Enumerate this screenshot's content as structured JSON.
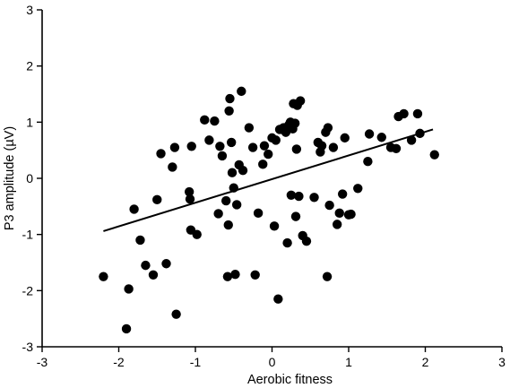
{
  "chart_data": {
    "type": "scatter",
    "title": "",
    "xlabel": "Aerobic fitness",
    "ylabel": "P3 amplitude (µV)",
    "xlim": [
      -3,
      3
    ],
    "ylim": [
      -3,
      3
    ],
    "xticks": [
      "-3",
      "-2",
      "-1",
      "0",
      "1",
      "2",
      "3"
    ],
    "yticks": [
      "3",
      "2",
      "1",
      "0",
      "-1",
      "-2",
      "-3"
    ],
    "grid": false,
    "legend": "none",
    "regression_line": {
      "x": [
        -2.2,
        2.1
      ],
      "y": [
        -0.94,
        0.87
      ]
    },
    "points": [
      {
        "x": -2.2,
        "y": -1.75
      },
      {
        "x": -1.9,
        "y": -2.68
      },
      {
        "x": -1.87,
        "y": -1.97
      },
      {
        "x": -1.8,
        "y": -0.55
      },
      {
        "x": -1.72,
        "y": -1.1
      },
      {
        "x": -1.65,
        "y": -1.55
      },
      {
        "x": -1.55,
        "y": -1.72
      },
      {
        "x": -1.5,
        "y": -0.38
      },
      {
        "x": -1.45,
        "y": 0.44
      },
      {
        "x": -1.38,
        "y": -1.52
      },
      {
        "x": -1.3,
        "y": 0.2
      },
      {
        "x": -1.27,
        "y": 0.55
      },
      {
        "x": -1.25,
        "y": -2.42
      },
      {
        "x": -1.08,
        "y": -0.24
      },
      {
        "x": -1.07,
        "y": -0.37
      },
      {
        "x": -1.06,
        "y": -0.92
      },
      {
        "x": -1.05,
        "y": 0.57
      },
      {
        "x": -0.98,
        "y": -1.0
      },
      {
        "x": -0.88,
        "y": 1.04
      },
      {
        "x": -0.82,
        "y": 0.68
      },
      {
        "x": -0.75,
        "y": 1.02
      },
      {
        "x": -0.7,
        "y": -0.63
      },
      {
        "x": -0.68,
        "y": 0.57
      },
      {
        "x": -0.65,
        "y": 0.4
      },
      {
        "x": -0.6,
        "y": -0.4
      },
      {
        "x": -0.58,
        "y": -1.75
      },
      {
        "x": -0.57,
        "y": -0.83
      },
      {
        "x": -0.56,
        "y": 1.2
      },
      {
        "x": -0.55,
        "y": 1.42
      },
      {
        "x": -0.53,
        "y": 0.64
      },
      {
        "x": -0.52,
        "y": 0.1
      },
      {
        "x": -0.5,
        "y": -0.17
      },
      {
        "x": -0.48,
        "y": -1.71
      },
      {
        "x": -0.46,
        "y": -0.47
      },
      {
        "x": -0.43,
        "y": 0.24
      },
      {
        "x": -0.4,
        "y": 1.55
      },
      {
        "x": -0.38,
        "y": 0.14
      },
      {
        "x": -0.3,
        "y": 0.9
      },
      {
        "x": -0.25,
        "y": 0.55
      },
      {
        "x": -0.22,
        "y": -1.72
      },
      {
        "x": -0.18,
        "y": -0.62
      },
      {
        "x": -0.12,
        "y": 0.25
      },
      {
        "x": -0.1,
        "y": 0.58
      },
      {
        "x": -0.05,
        "y": 0.43
      },
      {
        "x": 0.0,
        "y": 0.72
      },
      {
        "x": 0.03,
        "y": -0.85
      },
      {
        "x": 0.05,
        "y": 0.68
      },
      {
        "x": 0.08,
        "y": -2.15
      },
      {
        "x": 0.1,
        "y": 0.87
      },
      {
        "x": 0.15,
        "y": 0.9
      },
      {
        "x": 0.18,
        "y": 0.82
      },
      {
        "x": 0.2,
        "y": -1.15
      },
      {
        "x": 0.22,
        "y": 0.95
      },
      {
        "x": 0.24,
        "y": 1.0
      },
      {
        "x": 0.25,
        "y": -0.3
      },
      {
        "x": 0.27,
        "y": 0.88
      },
      {
        "x": 0.28,
        "y": 1.33
      },
      {
        "x": 0.3,
        "y": 0.98
      },
      {
        "x": 0.31,
        "y": -0.68
      },
      {
        "x": 0.32,
        "y": 0.52
      },
      {
        "x": 0.33,
        "y": 1.3
      },
      {
        "x": 0.35,
        "y": -0.32
      },
      {
        "x": 0.37,
        "y": 1.38
      },
      {
        "x": 0.4,
        "y": -1.02
      },
      {
        "x": 0.45,
        "y": -1.12
      },
      {
        "x": 0.55,
        "y": -0.34
      },
      {
        "x": 0.6,
        "y": 0.64
      },
      {
        "x": 0.63,
        "y": 0.47
      },
      {
        "x": 0.65,
        "y": 0.58
      },
      {
        "x": 0.7,
        "y": 0.82
      },
      {
        "x": 0.72,
        "y": -1.75
      },
      {
        "x": 0.73,
        "y": 0.9
      },
      {
        "x": 0.75,
        "y": -0.48
      },
      {
        "x": 0.8,
        "y": 0.55
      },
      {
        "x": 0.85,
        "y": -0.82
      },
      {
        "x": 0.88,
        "y": -0.62
      },
      {
        "x": 0.92,
        "y": -0.28
      },
      {
        "x": 0.95,
        "y": 0.72
      },
      {
        "x": 1.0,
        "y": -0.65
      },
      {
        "x": 1.03,
        "y": -0.64
      },
      {
        "x": 1.12,
        "y": -0.18
      },
      {
        "x": 1.25,
        "y": 0.3
      },
      {
        "x": 1.27,
        "y": 0.79
      },
      {
        "x": 1.43,
        "y": 0.73
      },
      {
        "x": 1.55,
        "y": 0.55
      },
      {
        "x": 1.62,
        "y": 0.53
      },
      {
        "x": 1.65,
        "y": 1.1
      },
      {
        "x": 1.72,
        "y": 1.15
      },
      {
        "x": 1.82,
        "y": 0.68
      },
      {
        "x": 1.9,
        "y": 1.15
      },
      {
        "x": 1.93,
        "y": 0.8
      },
      {
        "x": 2.12,
        "y": 0.42
      }
    ]
  }
}
